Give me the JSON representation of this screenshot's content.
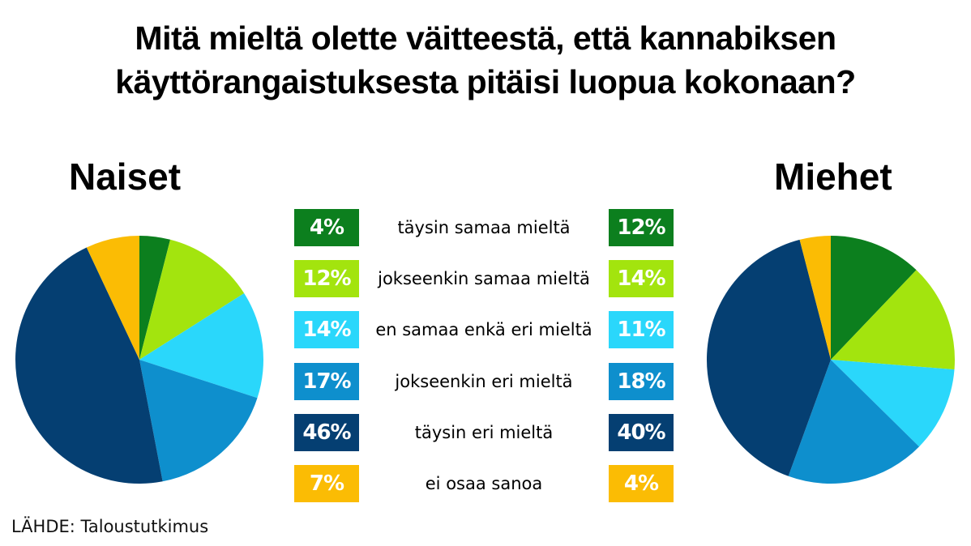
{
  "title_lines": [
    "Mitä mieltä olette väitteestä, että kannabiksen",
    "käyttörangaistuksesta pitäisi luopua kokonaan?"
  ],
  "source": "LÄHDE: Taloustutkimus",
  "chart_data": [
    {
      "type": "pie",
      "title": "Naiset",
      "categories": [
        "täysin samaa mieltä",
        "jokseenkin samaa mieltä",
        "en samaa enkä eri mieltä",
        "jokseenkin eri mieltä",
        "täysin eri mieltä",
        "ei osaa sanoa"
      ],
      "values": [
        4,
        12,
        14,
        17,
        46,
        7
      ],
      "value_labels": [
        "4%",
        "12%",
        "14%",
        "17%",
        "46%",
        "7%"
      ],
      "colors": [
        "#0c7f1e",
        "#a3e40e",
        "#2ad7fb",
        "#0e8fcd",
        "#053f72",
        "#fbbc04"
      ]
    },
    {
      "type": "pie",
      "title": "Miehet",
      "categories": [
        "täysin samaa mieltä",
        "jokseenkin samaa mieltä",
        "en samaa enkä eri mieltä",
        "jokseenkin eri mieltä",
        "täysin eri mieltä",
        "ei osaa sanoa"
      ],
      "values": [
        12,
        14,
        11,
        18,
        40,
        4
      ],
      "value_labels": [
        "12%",
        "14%",
        "11%",
        "18%",
        "40%",
        "4%"
      ],
      "colors": [
        "#0c7f1e",
        "#a3e40e",
        "#2ad7fb",
        "#0e8fcd",
        "#053f72",
        "#fbbc04"
      ]
    }
  ],
  "badge_text_colors": [
    "#ffffff",
    "#ffffff",
    "#ffffff",
    "#ffffff",
    "#ffffff",
    "#ffffff"
  ]
}
